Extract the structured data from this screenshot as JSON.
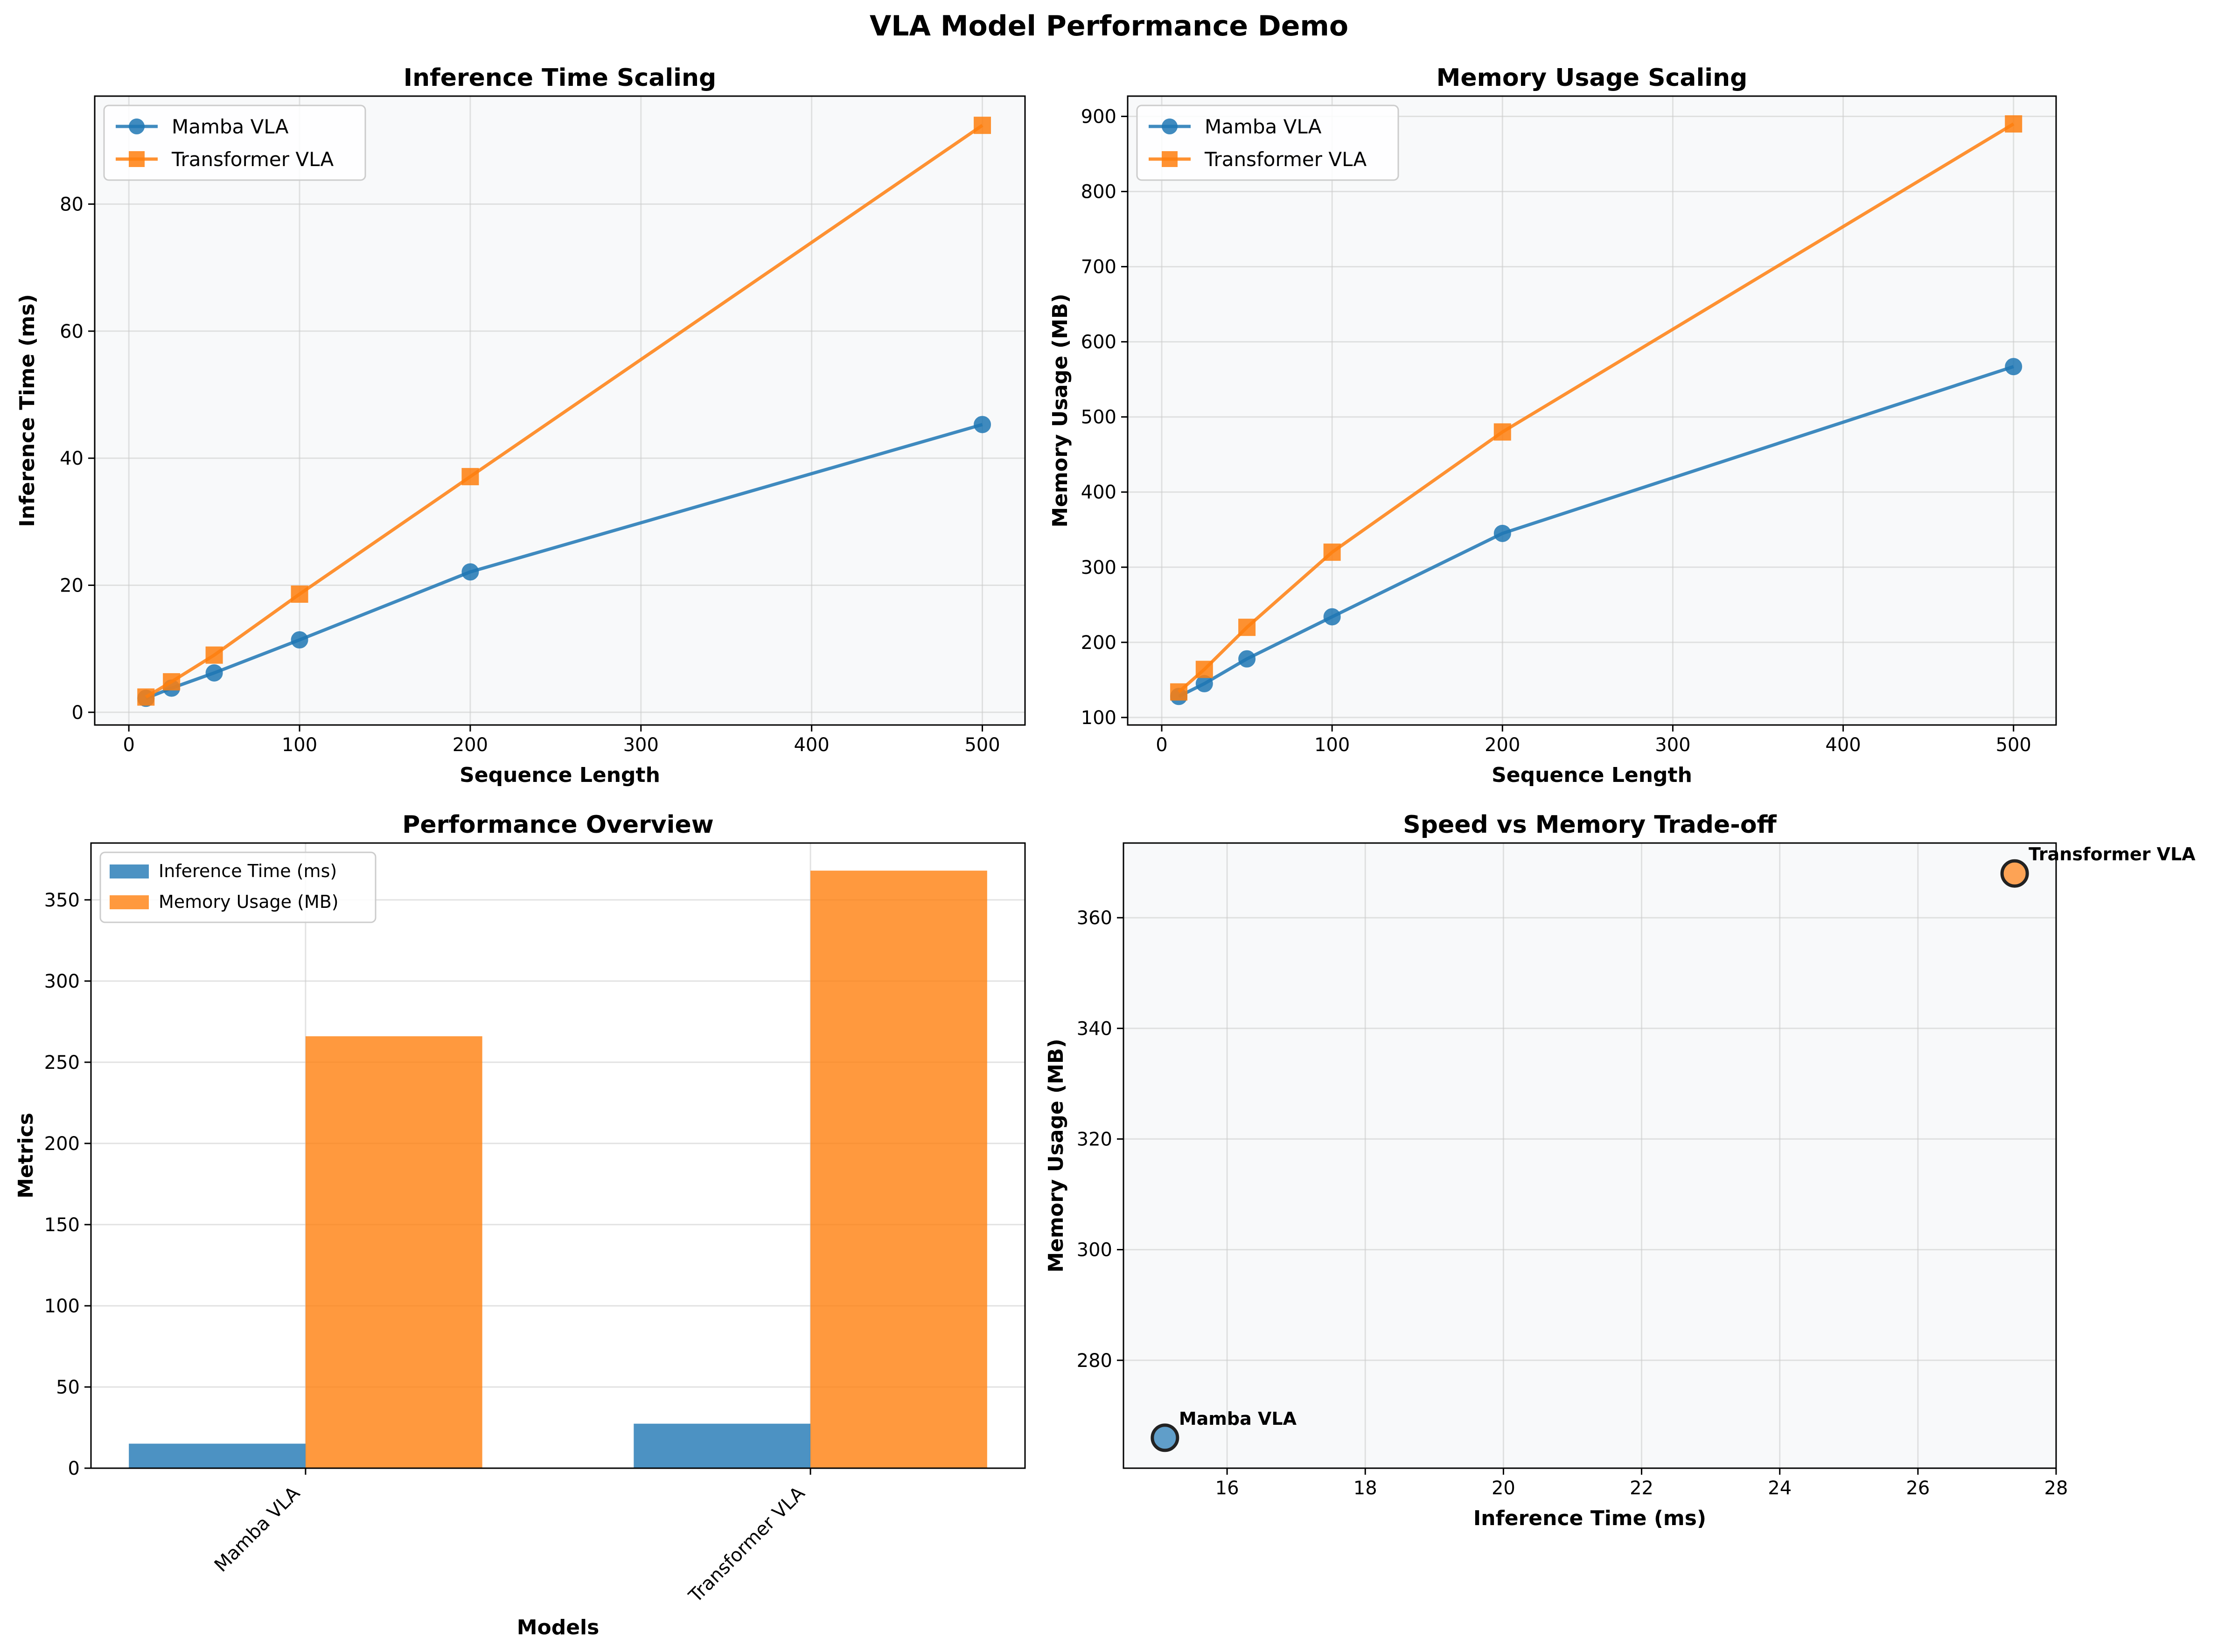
{
  "figure": {
    "title": "VLA Model Performance Demo"
  },
  "colors": {
    "mamba": "#1f77b4",
    "transformer": "#ff7f0e",
    "plot_bg": "#f8f9fa",
    "grid": "#cccccc"
  },
  "chart_data": [
    {
      "id": "inference",
      "type": "line",
      "title": "Inference Time Scaling",
      "xlabel": "Sequence Length",
      "ylabel": "Inference Time (ms)",
      "xlim": [
        -20,
        525
      ],
      "ylim": [
        -2,
        97
      ],
      "xticks": [
        0,
        100,
        200,
        300,
        400,
        500
      ],
      "yticks": [
        0,
        20,
        40,
        60,
        80
      ],
      "grid": true,
      "legend": "top-left",
      "x": [
        10,
        25,
        50,
        100,
        200,
        500
      ],
      "series": [
        {
          "name": "Mamba VLA",
          "marker": "circle",
          "values": [
            2.2,
            3.8,
            6.2,
            11.4,
            22.1,
            45.3
          ]
        },
        {
          "name": "Transformer VLA",
          "marker": "square",
          "values": [
            2.4,
            4.8,
            9.0,
            18.6,
            37.1,
            92.4
          ]
        }
      ]
    },
    {
      "id": "memory",
      "type": "line",
      "title": "Memory Usage Scaling",
      "xlabel": "Sequence Length",
      "ylabel": "Memory Usage (MB)",
      "xlim": [
        -20,
        525
      ],
      "ylim": [
        90,
        927
      ],
      "xticks": [
        0,
        100,
        200,
        300,
        400,
        500
      ],
      "yticks": [
        100,
        200,
        300,
        400,
        500,
        600,
        700,
        800,
        900
      ],
      "grid": true,
      "legend": "top-left",
      "x": [
        10,
        25,
        50,
        100,
        200,
        500
      ],
      "series": [
        {
          "name": "Mamba VLA",
          "marker": "circle",
          "values": [
            128,
            145,
            178,
            234,
            345,
            567
          ]
        },
        {
          "name": "Transformer VLA",
          "marker": "square",
          "values": [
            134,
            164,
            220,
            320,
            480,
            890
          ]
        }
      ]
    },
    {
      "id": "overview",
      "type": "bar",
      "title": "Performance Overview",
      "xlabel": "Models",
      "ylabel": "Metrics",
      "categories": [
        "Mamba VLA",
        "Transformer VLA"
      ],
      "ylim": [
        0,
        385
      ],
      "yticks": [
        0,
        50,
        100,
        150,
        200,
        250,
        300,
        350
      ],
      "grid": true,
      "legend": "top-left",
      "series": [
        {
          "name": "Inference Time (ms)",
          "values": [
            15.1,
            27.4
          ]
        },
        {
          "name": "Memory Usage (MB)",
          "values": [
            266,
            368
          ]
        }
      ]
    },
    {
      "id": "tradeoff",
      "type": "scatter",
      "title": "Speed vs Memory Trade-off",
      "xlabel": "Inference Time (ms)",
      "ylabel": "Memory Usage (MB)",
      "xlim": [
        14.5,
        28
      ],
      "ylim": [
        260.5,
        373.5
      ],
      "xticks": [
        16,
        18,
        20,
        22,
        24,
        26,
        28
      ],
      "yticks": [
        280,
        300,
        320,
        340,
        360
      ],
      "grid": true,
      "points": [
        {
          "label": "Mamba VLA",
          "x": 15.1,
          "y": 266
        },
        {
          "label": "Transformer VLA",
          "x": 27.4,
          "y": 368
        }
      ]
    }
  ]
}
